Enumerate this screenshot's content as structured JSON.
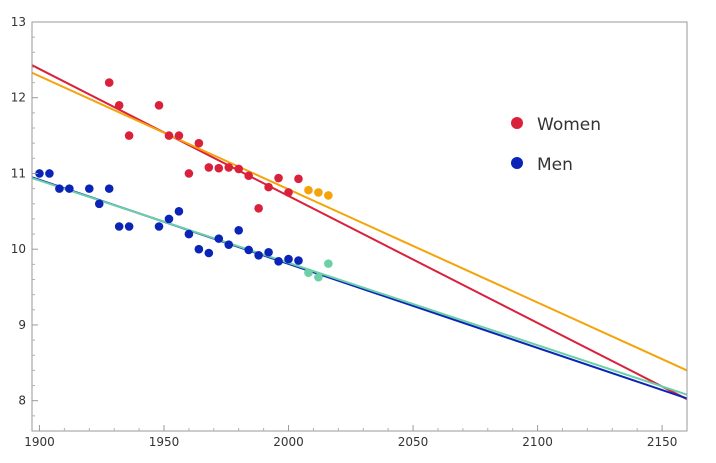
{
  "chart_data": {
    "type": "scatter",
    "xlim": [
      1897,
      2160
    ],
    "ylim": [
      7.6,
      13
    ],
    "x_ticks": [
      1900,
      1950,
      2000,
      2050,
      2100,
      2150
    ],
    "y_ticks": [
      8,
      9,
      10,
      11,
      12,
      13
    ],
    "grid": false,
    "legend": {
      "position": "right",
      "entries": [
        {
          "label": "Women",
          "color": "#d9213c"
        },
        {
          "label": "Men",
          "color": "#0a24b8"
        }
      ]
    },
    "series": [
      {
        "name": "Women",
        "color": "#d9213c",
        "points": [
          [
            1928,
            12.2
          ],
          [
            1932,
            11.9
          ],
          [
            1936,
            11.5
          ],
          [
            1948,
            11.9
          ],
          [
            1952,
            11.5
          ],
          [
            1956,
            11.5
          ],
          [
            1960,
            11.0
          ],
          [
            1964,
            11.4
          ],
          [
            1968,
            11.08
          ],
          [
            1972,
            11.07
          ],
          [
            1976,
            11.08
          ],
          [
            1980,
            11.06
          ],
          [
            1984,
            10.97
          ],
          [
            1988,
            10.54
          ],
          [
            1992,
            10.82
          ],
          [
            1996,
            10.94
          ],
          [
            2000,
            10.75
          ],
          [
            2004,
            10.93
          ]
        ]
      },
      {
        "name": "",
        "color": "#f5a30a",
        "points": [
          [
            2008,
            10.78
          ],
          [
            2012,
            10.75
          ],
          [
            2016,
            10.71
          ]
        ]
      },
      {
        "name": "Men",
        "color": "#0a24b8",
        "points": [
          [
            1900,
            11.0
          ],
          [
            1904,
            11.0
          ],
          [
            1908,
            10.8
          ],
          [
            1912,
            10.8
          ],
          [
            1920,
            10.8
          ],
          [
            1924,
            10.6
          ],
          [
            1928,
            10.8
          ],
          [
            1932,
            10.3
          ],
          [
            1936,
            10.3
          ],
          [
            1948,
            10.3
          ],
          [
            1952,
            10.4
          ],
          [
            1956,
            10.5
          ],
          [
            1960,
            10.2
          ],
          [
            1964,
            10.0
          ],
          [
            1968,
            9.95
          ],
          [
            1972,
            10.14
          ],
          [
            1976,
            10.06
          ],
          [
            1980,
            10.25
          ],
          [
            1984,
            9.99
          ],
          [
            1988,
            9.92
          ],
          [
            1992,
            9.96
          ],
          [
            1996,
            9.84
          ],
          [
            2000,
            9.87
          ],
          [
            2004,
            9.85
          ]
        ]
      },
      {
        "name": "",
        "color": "#6ccfa8",
        "points": [
          [
            2008,
            9.69
          ],
          [
            2012,
            9.63
          ],
          [
            2016,
            9.81
          ]
        ]
      }
    ],
    "trend_lines": [
      {
        "color": "#d9213c",
        "from": [
          1897,
          12.43
        ],
        "to": [
          2160,
          8.02
        ]
      },
      {
        "color": "#f5a30a",
        "from": [
          1897,
          12.33
        ],
        "to": [
          2160,
          8.4
        ]
      },
      {
        "color": "#0a24b8",
        "from": [
          1897,
          10.95
        ],
        "to": [
          2160,
          8.03
        ]
      },
      {
        "color": "#6ccfa8",
        "from": [
          1897,
          10.94
        ],
        "to": [
          2160,
          8.08
        ]
      }
    ]
  }
}
